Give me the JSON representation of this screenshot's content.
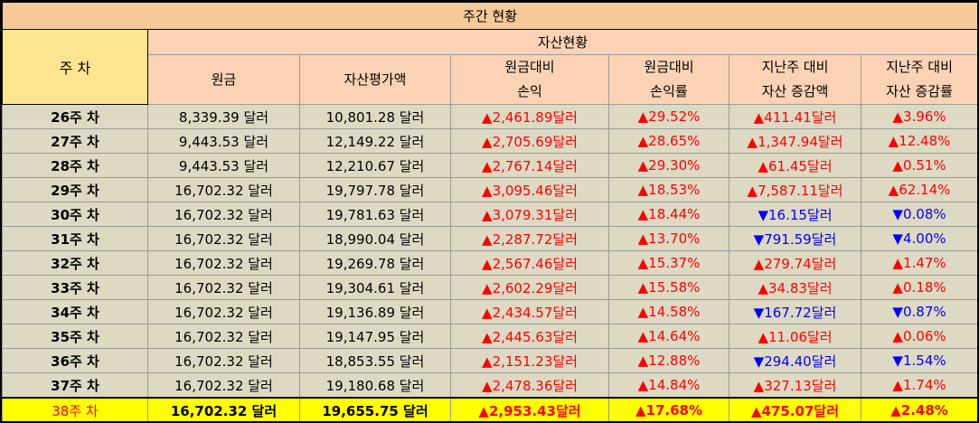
{
  "title": "주간 현황",
  "header": {
    "week": "주 차",
    "group": "자산현황",
    "columns": [
      [
        "원금"
      ],
      [
        "자산평가액"
      ],
      [
        "원금대비",
        "손익"
      ],
      [
        "원금대비",
        "손익률"
      ],
      [
        "지난주 대비",
        "자산 증감액"
      ],
      [
        "지난주 대비",
        "자산 증감률"
      ]
    ]
  },
  "rows": [
    {
      "week": "26주 차",
      "principal": "8,339.39 달러",
      "asset": "10,801.28 달러",
      "pl_dir": "up",
      "pl": "2,461.89달러",
      "plr_dir": "up",
      "plr": "29.52%",
      "chg_dir": "up",
      "chg": "411.41달러",
      "chgr_dir": "up",
      "chgr": "3.96%"
    },
    {
      "week": "27주 차",
      "principal": "9,443.53 달러",
      "asset": "12,149.22 달러",
      "pl_dir": "up",
      "pl": "2,705.69달러",
      "plr_dir": "up",
      "plr": "28.65%",
      "chg_dir": "up",
      "chg": "1,347.94달러",
      "chgr_dir": "up",
      "chgr": "12.48%"
    },
    {
      "week": "28주 차",
      "principal": "9,443.53 달러",
      "asset": "12,210.67 달러",
      "pl_dir": "up",
      "pl": "2,767.14달러",
      "plr_dir": "up",
      "plr": "29.30%",
      "chg_dir": "up",
      "chg": "61.45달러",
      "chgr_dir": "up",
      "chgr": "0.51%"
    },
    {
      "week": "29주 차",
      "principal": "16,702.32 달러",
      "asset": "19,797.78 달러",
      "pl_dir": "up",
      "pl": "3,095.46달러",
      "plr_dir": "up",
      "plr": "18.53%",
      "chg_dir": "up",
      "chg": "7,587.11달러",
      "chgr_dir": "up",
      "chgr": "62.14%"
    },
    {
      "week": "30주 차",
      "principal": "16,702.32 달러",
      "asset": "19,781.63 달러",
      "pl_dir": "up",
      "pl": "3,079.31달러",
      "plr_dir": "up",
      "plr": "18.44%",
      "chg_dir": "down",
      "chg": "16.15달러",
      "chgr_dir": "down",
      "chgr": "0.08%"
    },
    {
      "week": "31주 차",
      "principal": "16,702.32 달러",
      "asset": "18,990.04 달러",
      "pl_dir": "up",
      "pl": "2,287.72달러",
      "plr_dir": "up",
      "plr": "13.70%",
      "chg_dir": "down",
      "chg": "791.59달러",
      "chgr_dir": "down",
      "chgr": "4.00%"
    },
    {
      "week": "32주 차",
      "principal": "16,702.32 달러",
      "asset": "19,269.78 달러",
      "pl_dir": "up",
      "pl": "2,567.46달러",
      "plr_dir": "up",
      "plr": "15.37%",
      "chg_dir": "up",
      "chg": "279.74달러",
      "chgr_dir": "up",
      "chgr": "1.47%"
    },
    {
      "week": "33주 차",
      "principal": "16,702.32 달러",
      "asset": "19,304.61 달러",
      "pl_dir": "up",
      "pl": "2,602.29달러",
      "plr_dir": "up",
      "plr": "15.58%",
      "chg_dir": "up",
      "chg": "34.83달러",
      "chgr_dir": "up",
      "chgr": "0.18%"
    },
    {
      "week": "34주 차",
      "principal": "16,702.32 달러",
      "asset": "19,136.89 달러",
      "pl_dir": "up",
      "pl": "2,434.57달러",
      "plr_dir": "up",
      "plr": "14.58%",
      "chg_dir": "down",
      "chg": "167.72달러",
      "chgr_dir": "down",
      "chgr": "0.87%"
    },
    {
      "week": "35주 차",
      "principal": "16,702.32 달러",
      "asset": "19,147.95 달러",
      "pl_dir": "up",
      "pl": "2,445.63달러",
      "plr_dir": "up",
      "plr": "14.64%",
      "chg_dir": "up",
      "chg": "11.06달러",
      "chgr_dir": "up",
      "chgr": "0.06%"
    },
    {
      "week": "36주 차",
      "principal": "16,702.32 달러",
      "asset": "18,853.55 달러",
      "pl_dir": "up",
      "pl": "2,151.23달러",
      "plr_dir": "up",
      "plr": "12.88%",
      "chg_dir": "down",
      "chg": "294.40달러",
      "chgr_dir": "down",
      "chgr": "1.54%"
    },
    {
      "week": "37주 차",
      "principal": "16,702.32 달러",
      "asset": "19,180.68 달러",
      "pl_dir": "up",
      "pl": "2,478.36달러",
      "plr_dir": "up",
      "plr": "14.84%",
      "chg_dir": "up",
      "chg": "327.13달러",
      "chgr_dir": "up",
      "chgr": "1.74%"
    },
    {
      "week": "38주 차",
      "principal": "16,702.32 달러",
      "asset": "19,655.75 달러",
      "pl_dir": "up",
      "pl": "2,953.43달러",
      "plr_dir": "up",
      "plr": "17.68%",
      "chg_dir": "up",
      "chg": "475.07달러",
      "chgr_dir": "up",
      "chgr": "2.48%",
      "highlight": true
    }
  ],
  "symbols": {
    "up": "▲",
    "down": "▼"
  },
  "colors": {
    "up": "#ff0000",
    "down": "#0000ff",
    "highlight": "#ffff00",
    "row_bg": "#ddd9c3",
    "header_bg": "#fbd3b4",
    "week_header_bg": "#fde58f"
  }
}
